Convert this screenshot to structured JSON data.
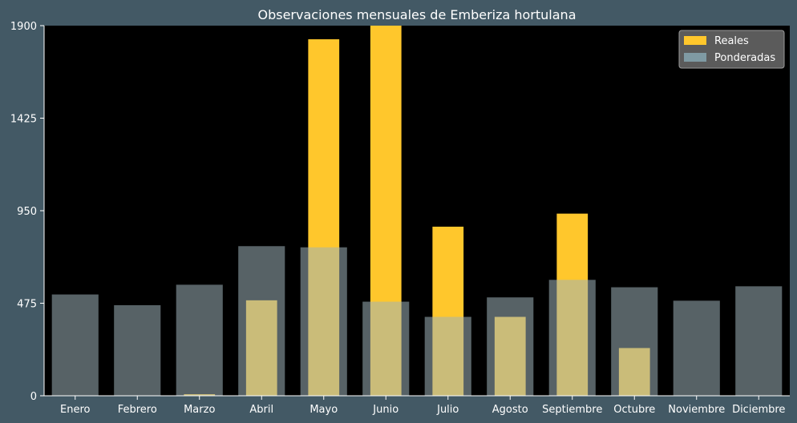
{
  "chart_data": {
    "type": "bar",
    "title": "Observaciones mensuales de Emberiza hortulana",
    "xlabel": "",
    "ylabel": "",
    "categories": [
      "Enero",
      "Febrero",
      "Marzo",
      "Abril",
      "Mayo",
      "Junio",
      "Julio",
      "Agosto",
      "Septiembre",
      "Octubre",
      "Noviembre",
      "Diciembre"
    ],
    "series": [
      {
        "name": "Reales",
        "values": [
          0,
          0,
          8,
          490,
          1830,
          1900,
          868,
          405,
          935,
          245,
          0,
          0
        ],
        "color": "#ffc72c"
      },
      {
        "name": "Ponderadas",
        "values": [
          520,
          465,
          570,
          768,
          762,
          483,
          405,
          505,
          595,
          557,
          488,
          562
        ],
        "color": "#9eb3ba"
      }
    ],
    "ylim": [
      0,
      1900
    ],
    "yticks": [
      0,
      475,
      950,
      1425,
      1900
    ],
    "grid": false,
    "legend": "top-right",
    "plot_background": "#000000",
    "figure_background": "#435965"
  }
}
